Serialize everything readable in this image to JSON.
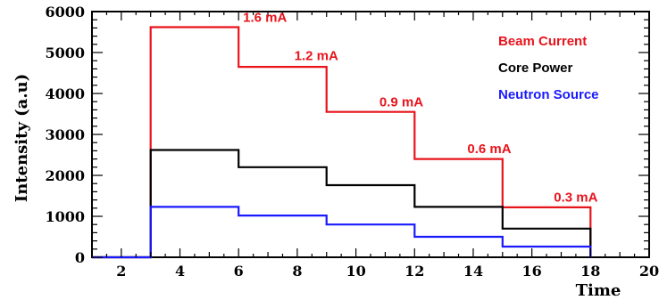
{
  "chart_data": {
    "type": "line",
    "xlabel": "Time",
    "ylabel": "Intensity (a.u)",
    "xlim": [
      1,
      20
    ],
    "ylim": [
      0,
      6000
    ],
    "x_ticks": [
      "2",
      "4",
      "6",
      "8",
      "10",
      "12",
      "14",
      "16",
      "18",
      "20"
    ],
    "y_ticks": [
      "0",
      "1000",
      "2000",
      "3000",
      "4000",
      "5000",
      "6000"
    ],
    "legend_position": "top-right",
    "grid": false,
    "series": [
      {
        "name": "Beam Current",
        "color": "#e8141c",
        "x": [
          1,
          3,
          3,
          6,
          6,
          9,
          9,
          12,
          12,
          15,
          15,
          18,
          18
        ],
        "y": [
          0,
          0,
          5620,
          5620,
          4650,
          4650,
          3550,
          3550,
          2400,
          2400,
          1220,
          1220,
          0
        ]
      },
      {
        "name": "Core Power",
        "color": "#000000",
        "x": [
          1,
          3,
          3,
          6,
          6,
          9,
          9,
          12,
          12,
          15,
          15,
          18,
          18
        ],
        "y": [
          0,
          0,
          2620,
          2620,
          2200,
          2200,
          1760,
          1760,
          1230,
          1230,
          700,
          700,
          0
        ]
      },
      {
        "name": "Neutron Source",
        "color": "#1a1aff",
        "x": [
          1,
          3,
          3,
          6,
          6,
          9,
          9,
          12,
          12,
          15,
          15,
          18,
          18
        ],
        "y": [
          0,
          0,
          1230,
          1230,
          1020,
          1020,
          800,
          800,
          500,
          500,
          260,
          260,
          0
        ]
      }
    ],
    "annotations": [
      {
        "text": "1.6 mA",
        "x": 6.15,
        "y": 5750,
        "color": "#e8141c"
      },
      {
        "text": "1.2 mA",
        "x": 7.9,
        "y": 4810,
        "color": "#e8141c"
      },
      {
        "text": "0.9 mA",
        "x": 10.8,
        "y": 3690,
        "color": "#e8141c"
      },
      {
        "text": "0.6 mA",
        "x": 13.8,
        "y": 2540,
        "color": "#e8141c"
      },
      {
        "text": "0.3 mA",
        "x": 16.75,
        "y": 1360,
        "color": "#e8141c"
      }
    ]
  }
}
